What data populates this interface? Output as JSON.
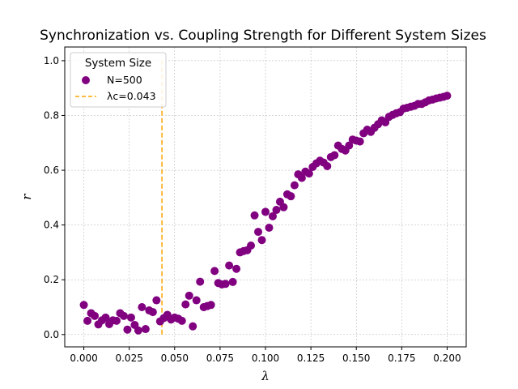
{
  "chart_data": {
    "type": "scatter",
    "title": "Synchronization vs. Coupling Strength for Different System Sizes",
    "xlabel": "λ",
    "ylabel": "r",
    "xlim": [
      -0.0105,
      0.2105
    ],
    "ylim": [
      -0.045,
      1.05
    ],
    "xticks": [
      0.0,
      0.025,
      0.05,
      0.075,
      0.1,
      0.125,
      0.15,
      0.175,
      0.2
    ],
    "xtick_labels": [
      "0.000",
      "0.025",
      "0.050",
      "0.075",
      "0.100",
      "0.125",
      "0.150",
      "0.175",
      "0.200"
    ],
    "yticks": [
      0.0,
      0.2,
      0.4,
      0.6,
      0.8,
      1.0
    ],
    "ytick_labels": [
      "0.0",
      "0.2",
      "0.4",
      "0.6",
      "0.8",
      "1.0"
    ],
    "grid": true,
    "legend": {
      "title": "System Size",
      "placement": "top-left",
      "entries": [
        "N=500",
        "λc=0.043"
      ]
    },
    "series": [
      {
        "name": "N=500",
        "kind": "scatter",
        "color": "#800080",
        "x": [
          0.0,
          0.002,
          0.004,
          0.006,
          0.008,
          0.01,
          0.012,
          0.014,
          0.016,
          0.018,
          0.02,
          0.022,
          0.024,
          0.026,
          0.028,
          0.03,
          0.032,
          0.034,
          0.036,
          0.038,
          0.04,
          0.042,
          0.044,
          0.046,
          0.048,
          0.05,
          0.052,
          0.054,
          0.056,
          0.058,
          0.06,
          0.062,
          0.064,
          0.066,
          0.068,
          0.07,
          0.072,
          0.074,
          0.076,
          0.078,
          0.08,
          0.082,
          0.084,
          0.086,
          0.088,
          0.09,
          0.092,
          0.094,
          0.096,
          0.098,
          0.1,
          0.102,
          0.104,
          0.106,
          0.108,
          0.11,
          0.112,
          0.114,
          0.116,
          0.118,
          0.12,
          0.122,
          0.124,
          0.126,
          0.128,
          0.13,
          0.132,
          0.134,
          0.136,
          0.138,
          0.14,
          0.142,
          0.144,
          0.146,
          0.148,
          0.15,
          0.152,
          0.154,
          0.156,
          0.158,
          0.16,
          0.162,
          0.164,
          0.166,
          0.168,
          0.17,
          0.172,
          0.174,
          0.176,
          0.178,
          0.18,
          0.182,
          0.184,
          0.186,
          0.188,
          0.19,
          0.192,
          0.194,
          0.196,
          0.198,
          0.2
        ],
        "y": [
          0.108,
          0.05,
          0.078,
          0.068,
          0.037,
          0.052,
          0.062,
          0.038,
          0.052,
          0.05,
          0.078,
          0.068,
          0.018,
          0.062,
          0.035,
          0.015,
          0.1,
          0.02,
          0.088,
          0.082,
          0.125,
          0.048,
          0.06,
          0.072,
          0.055,
          0.062,
          0.058,
          0.05,
          0.11,
          0.142,
          0.03,
          0.125,
          0.193,
          0.1,
          0.104,
          0.108,
          0.232,
          0.188,
          0.183,
          0.185,
          0.252,
          0.192,
          0.24,
          0.3,
          0.305,
          0.308,
          0.325,
          0.435,
          0.375,
          0.345,
          0.448,
          0.39,
          0.432,
          0.455,
          0.485,
          0.465,
          0.512,
          0.505,
          0.545,
          0.585,
          0.572,
          0.595,
          0.588,
          0.612,
          0.625,
          0.635,
          0.628,
          0.615,
          0.648,
          0.655,
          0.69,
          0.678,
          0.672,
          0.69,
          0.712,
          0.708,
          0.705,
          0.735,
          0.748,
          0.74,
          0.755,
          0.768,
          0.782,
          0.775,
          0.795,
          0.802,
          0.808,
          0.812,
          0.825,
          0.828,
          0.832,
          0.835,
          0.842,
          0.842,
          0.848,
          0.855,
          0.858,
          0.862,
          0.865,
          0.868,
          0.872
        ]
      },
      {
        "name": "λc=0.043",
        "kind": "vline",
        "color": "#FFA500",
        "x": 0.043,
        "y_range": [
          0.0,
          1.0
        ]
      }
    ]
  }
}
